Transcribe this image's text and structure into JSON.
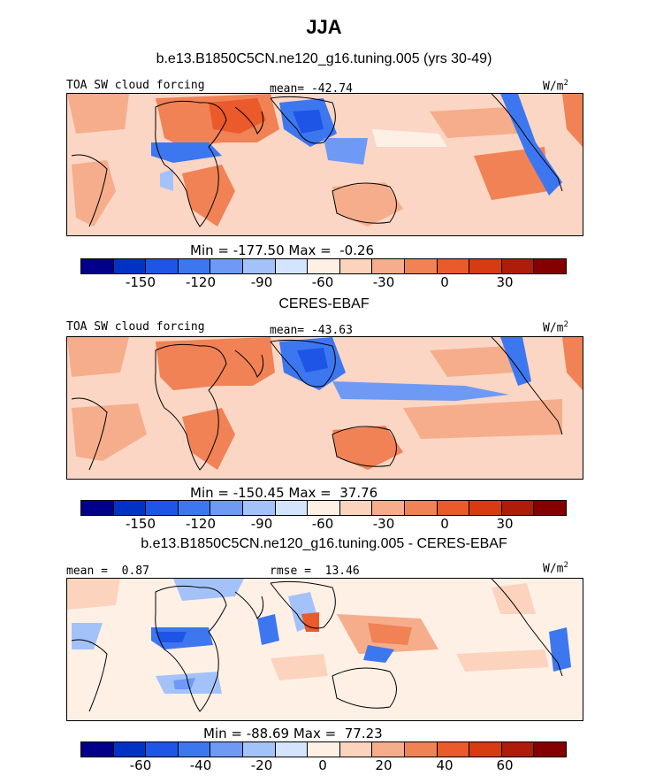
{
  "title": "JJA",
  "colors": [
    "#00008a",
    "#0033c4",
    "#1f55e6",
    "#3d77f0",
    "#6e9af5",
    "#a4c2fa",
    "#d4e4fc",
    "#fff0e6",
    "#fcd3bd",
    "#f6ad8b",
    "#f08255",
    "#ea5a2a",
    "#d83a12",
    "#b01c0a",
    "#850000"
  ],
  "panel1": {
    "heading": "b.e13.B1850C5CN.ne120_g16.tuning.005 (yrs 30-49)",
    "var_label": "TOA SW cloud forcing",
    "mean_label": "mean= -42.74",
    "units": "W/m",
    "units_sup": "2",
    "minmax": "Min = -177.50 Max =  -0.26",
    "ticks": [
      "-150",
      "-120",
      "-90",
      "-60",
      "-30",
      "0",
      "30"
    ]
  },
  "panel2": {
    "heading": "CERES-EBAF",
    "var_label": "TOA SW cloud forcing",
    "mean_label": "mean= -43.63",
    "units": "W/m",
    "units_sup": "2",
    "minmax": "Min = -150.45 Max =  37.76",
    "ticks": [
      "-150",
      "-120",
      "-90",
      "-60",
      "-30",
      "0",
      "30"
    ]
  },
  "panel3": {
    "heading": "b.e13.B1850C5CN.ne120_g16.tuning.005 - CERES-EBAF",
    "mean_label": "mean =  0.87",
    "rmse_label": "rmse =  13.46",
    "units": "W/m",
    "units_sup": "2",
    "minmax": "Min = -88.69 Max =  77.23",
    "ticks": [
      "-60",
      "-40",
      "-20",
      "0",
      "20",
      "40",
      "60"
    ]
  }
}
